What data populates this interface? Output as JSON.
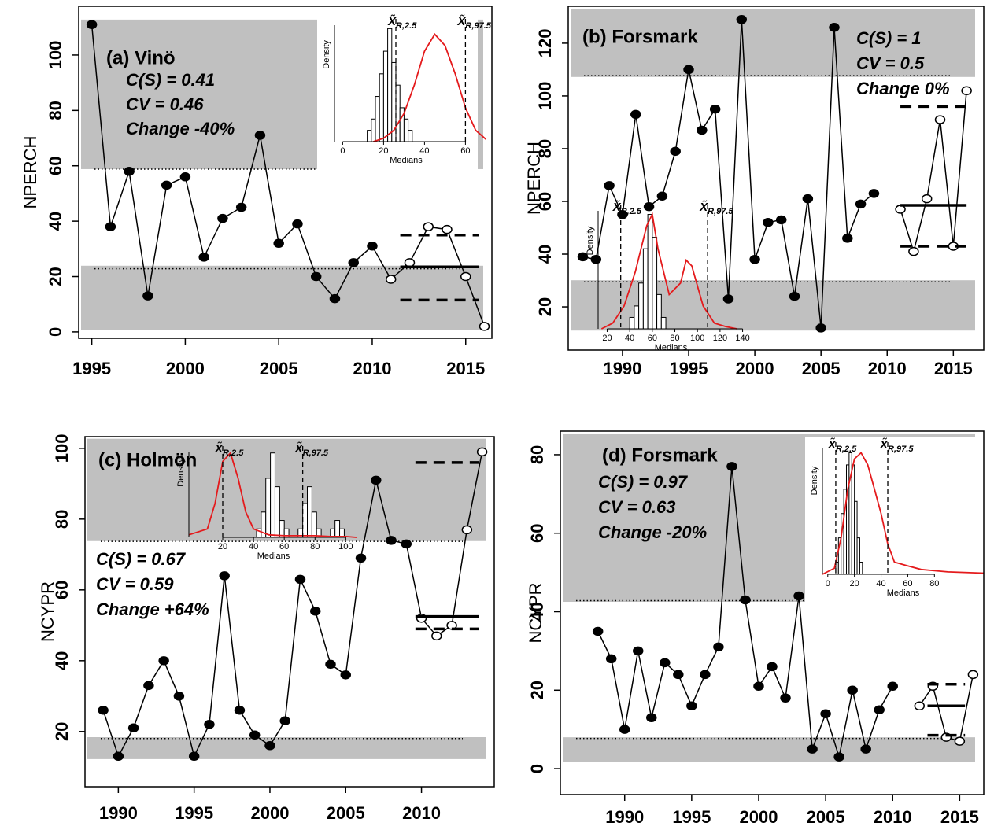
{
  "chart_data": [
    {
      "type": "line",
      "panel_label": "(a) Vinö",
      "stats": [
        "C(S) = 0.41",
        "CV = 0.46",
        "Change -40%"
      ],
      "ylabel": "NPERCH",
      "x": [
        1995,
        1996,
        1997,
        1998,
        1999,
        2000,
        2001,
        2002,
        2003,
        2004,
        2005,
        2006,
        2007,
        2008,
        2009,
        2010,
        2011,
        2012,
        2013,
        2014,
        2015,
        2016
      ],
      "values": [
        111,
        38,
        58,
        13,
        53,
        56,
        27,
        41,
        45,
        71,
        32,
        39,
        20,
        12,
        25,
        31,
        19,
        25,
        38,
        37,
        20,
        2
      ],
      "marker_open": [
        false,
        false,
        false,
        false,
        false,
        false,
        false,
        false,
        false,
        false,
        false,
        false,
        false,
        false,
        false,
        false,
        true,
        true,
        true,
        true,
        true,
        true
      ],
      "xlim": [
        1994.3,
        2016.4
      ],
      "ylim": [
        -2.3,
        117.6
      ],
      "xticks": [
        1995,
        2000,
        2005,
        2010,
        2015
      ],
      "yticks": [
        0,
        20,
        40,
        60,
        80,
        100
      ],
      "bands": [
        [
          0.6,
          23.9
        ],
        [
          58.8,
          112.8
        ]
      ],
      "band_color": "#c0c0c0",
      "thresholds": [
        22.8,
        58.8
      ],
      "ref_xlim": [
        2011.5,
        2015.7
      ],
      "ref_lines": [
        {
          "value": 23.5,
          "style": "solid"
        },
        {
          "value": 35,
          "style": "dashed"
        },
        {
          "value": 11.5,
          "style": "dashed"
        }
      ],
      "inset": {
        "background": "#ffffff",
        "xlim": [
          -4,
          66
        ],
        "ylim": [
          0,
          11
        ],
        "xticks": [
          0,
          20,
          40,
          60
        ],
        "xlabel": "Medians",
        "ylabel": "Density",
        "density_color": "#e41a1c",
        "quantiles": [
          {
            "value": 26,
            "symbol": "X̃",
            "subscript": "R,2.5"
          },
          {
            "value": 60,
            "symbol": "X̃",
            "subscript": "R,97.5"
          }
        ],
        "hist": {
          "bins": [
            12,
            14,
            16,
            18,
            20,
            22,
            24,
            26,
            28,
            30,
            32,
            34
          ],
          "counts": [
            1,
            2,
            4,
            6,
            8,
            10,
            7,
            5,
            3,
            2,
            1
          ]
        },
        "density": {
          "x": [
            15,
            20,
            25,
            30,
            35,
            40,
            45,
            50,
            55,
            60,
            65,
            70
          ],
          "y": [
            0,
            0.3,
            1,
            2.5,
            5,
            8,
            9.5,
            8.5,
            6,
            3,
            1,
            0.2
          ]
        }
      }
    },
    {
      "type": "line",
      "panel_label": "(b) Forsmark",
      "stats": [
        "C(S) = 1",
        "CV = 0.5",
        "Change 0%"
      ],
      "ylabel": "NPERCH",
      "x": [
        1987,
        1988,
        1989,
        1990,
        1991,
        1992,
        1993,
        1994,
        1995,
        1996,
        1997,
        1998,
        1999,
        2000,
        2001,
        2002,
        2003,
        2004,
        2005,
        2006,
        2007,
        2008,
        2009,
        2010,
        2011,
        2012,
        2013,
        2014,
        2015,
        2016
      ],
      "values": [
        39,
        38,
        66,
        55,
        93,
        58,
        62,
        79,
        110,
        87,
        95,
        23,
        129,
        38,
        52,
        53,
        24,
        61,
        12,
        126,
        46,
        59,
        63,
        null,
        57,
        41,
        61,
        91,
        43,
        102
      ],
      "marker_open": [
        false,
        false,
        false,
        false,
        false,
        false,
        false,
        false,
        false,
        false,
        false,
        false,
        false,
        false,
        false,
        false,
        false,
        false,
        false,
        false,
        false,
        false,
        false,
        false,
        true,
        true,
        true,
        true,
        true,
        true
      ],
      "xlim": [
        1985.9,
        2017.3
      ],
      "ylim": [
        3.6,
        134
      ],
      "xticks": [
        1990,
        1995,
        2000,
        2005,
        2010,
        2015
      ],
      "yticks": [
        20,
        40,
        60,
        80,
        100,
        120
      ],
      "bands": [
        [
          11,
          30.1
        ],
        [
          107.2,
          132.8
        ]
      ],
      "band_color": "#c0c0c0",
      "thresholds": [
        29.5,
        107.7
      ],
      "ref_xlim": [
        2011,
        2016
      ],
      "ref_lines": [
        {
          "value": 58.5,
          "style": "solid"
        },
        {
          "value": 96,
          "style": "dashed"
        },
        {
          "value": 43,
          "style": "dashed"
        }
      ],
      "inset": {
        "xlim": [
          12,
          141
        ],
        "ylim": [
          0,
          11
        ],
        "xticks": [
          20,
          40,
          60,
          80,
          100,
          120,
          140
        ],
        "xlabel": "Medians",
        "ylabel": "Density",
        "density_color": "#e41a1c",
        "quantiles": [
          {
            "value": 32,
            "symbol": "X̃",
            "subscript": "R,2.5"
          },
          {
            "value": 109,
            "symbol": "X̃",
            "subscript": "R,97.5"
          }
        ],
        "hist": {
          "bins": [
            40,
            44,
            48,
            52,
            56,
            60,
            64,
            68,
            72
          ],
          "counts": [
            1,
            2,
            4,
            7,
            10,
            8,
            3,
            1
          ]
        },
        "density": {
          "x": [
            15,
            25,
            35,
            45,
            55,
            60,
            65,
            75,
            85,
            90,
            95,
            105,
            115,
            125,
            135
          ],
          "y": [
            0,
            0.5,
            2,
            5,
            9,
            10,
            7,
            3,
            4,
            6,
            5.5,
            2,
            0.5,
            0.2,
            0
          ]
        }
      }
    },
    {
      "type": "line",
      "panel_label": "(c) Holmön",
      "stats": [
        "C(S) = 0.67",
        "CV = 0.59",
        "Change +64%"
      ],
      "ylabel": "NCYPR",
      "x": [
        1989,
        1990,
        1991,
        1992,
        1993,
        1994,
        1995,
        1996,
        1997,
        1998,
        1999,
        2000,
        2001,
        2002,
        2003,
        2004,
        2005,
        2006,
        2007,
        2008,
        2009,
        2010,
        2011,
        2012,
        2013,
        2014
      ],
      "values": [
        26,
        13,
        21,
        33,
        40,
        30,
        13,
        22,
        64,
        26,
        19,
        16,
        23,
        63,
        54,
        39,
        36,
        69,
        91,
        74,
        73,
        52,
        47,
        50,
        77,
        99
      ],
      "marker_open": [
        false,
        false,
        false,
        false,
        false,
        false,
        false,
        false,
        false,
        false,
        false,
        false,
        false,
        false,
        false,
        false,
        false,
        false,
        false,
        false,
        false,
        true,
        true,
        true,
        true,
        true
      ],
      "xlim": [
        1987.8,
        2014.8
      ],
      "ylim": [
        4.4,
        103.3
      ],
      "xticks": [
        1990,
        1995,
        2000,
        2005,
        2010
      ],
      "yticks": [
        20,
        40,
        60,
        80,
        100
      ],
      "bands": [
        [
          12.2,
          18.4
        ],
        [
          73.8,
          102.7
        ]
      ],
      "band_color": "#c0c0c0",
      "thresholds": [
        18,
        73.7
      ],
      "ref_xlim": [
        2009.6,
        2013.8
      ],
      "ref_lines": [
        {
          "value": 52.5,
          "style": "solid"
        },
        {
          "value": 96,
          "style": "dashed"
        },
        {
          "value": 49,
          "style": "dashed"
        }
      ],
      "inset": {
        "xlim": [
          -2,
          108
        ],
        "ylim": [
          0,
          11
        ],
        "xticks": [
          20,
          40,
          60,
          80,
          100
        ],
        "xlabel": "Medians",
        "ylabel": "Density",
        "density_color": "#e41a1c",
        "quantiles": [
          {
            "value": 20,
            "symbol": "X̃",
            "subscript": "R,2.5"
          },
          {
            "value": 72,
            "symbol": "X̃",
            "subscript": "R,97.5"
          }
        ],
        "hist": {
          "bins": [
            42,
            45,
            48,
            51,
            54,
            57,
            60,
            63,
            66,
            69,
            72,
            75,
            78,
            81,
            84,
            87,
            90,
            93,
            96,
            99
          ],
          "counts": [
            1,
            3,
            7,
            10,
            6,
            2,
            1,
            0,
            0,
            1,
            4,
            6,
            3,
            1,
            0,
            0,
            1,
            2,
            1
          ]
        },
        "density": {
          "x": [
            -2,
            10,
            15,
            20,
            25,
            30,
            35,
            40,
            50,
            60,
            70,
            80,
            90,
            100,
            107
          ],
          "y": [
            0.3,
            1,
            4,
            9,
            10,
            7,
            3,
            1,
            0.3,
            0.2,
            0.2,
            0.2,
            0.1,
            0.1,
            0
          ]
        }
      }
    },
    {
      "type": "line",
      "panel_label": "(d) Forsmark",
      "stats": [
        "C(S) = 0.97",
        "CV = 0.63",
        "Change -20%"
      ],
      "ylabel": "NCYPR",
      "x": [
        1988,
        1989,
        1990,
        1991,
        1992,
        1993,
        1994,
        1995,
        1996,
        1997,
        1998,
        1999,
        2000,
        2001,
        2002,
        2003,
        2004,
        2005,
        2006,
        2007,
        2008,
        2009,
        2010,
        2011,
        2012,
        2013,
        2014,
        2015,
        2016
      ],
      "values": [
        35,
        28,
        10,
        30,
        13,
        27,
        24,
        16,
        24,
        31,
        77,
        43,
        21,
        26,
        18,
        44,
        5,
        14,
        3,
        20,
        5,
        15,
        21,
        null,
        16,
        21,
        8,
        7,
        24
      ],
      "marker_open": [
        false,
        false,
        false,
        false,
        false,
        false,
        false,
        false,
        false,
        false,
        false,
        false,
        false,
        false,
        false,
        false,
        false,
        false,
        false,
        false,
        false,
        false,
        false,
        false,
        true,
        true,
        true,
        true,
        true
      ],
      "xlim": [
        1985.2,
        2016.8
      ],
      "ylim": [
        -6.6,
        86
      ],
      "xticks": [
        1990,
        1995,
        2000,
        2005,
        2010,
        2015
      ],
      "yticks": [
        0,
        20,
        40,
        60,
        80
      ],
      "bands": [
        [
          1.8,
          8
        ],
        [
          42.5,
          85.2
        ]
      ],
      "band_color": "#c0c0c0",
      "thresholds": [
        7.7,
        42.8
      ],
      "ref_xlim": [
        2012.6,
        2015.4
      ],
      "ref_lines": [
        {
          "value": 16,
          "style": "solid"
        },
        {
          "value": 21.5,
          "style": "dashed"
        },
        {
          "value": 8.5,
          "style": "dashed"
        }
      ],
      "inset": {
        "background": "#ffffff",
        "xlim": [
          -4,
          117
        ],
        "ylim": [
          0,
          11
        ],
        "xticks": [
          0,
          20,
          40,
          60,
          80
        ],
        "xlabel": "Medians",
        "ylabel": "Density",
        "density_color": "#e41a1c",
        "quantiles": [
          {
            "value": 6,
            "symbol": "X̃",
            "subscript": "R,2.5"
          },
          {
            "value": 45,
            "symbol": "X̃",
            "subscript": "R,97.5"
          }
        ],
        "hist": {
          "bins": [
            6,
            8,
            10,
            12,
            14,
            16,
            18,
            20,
            22,
            24,
            26
          ],
          "counts": [
            1,
            3,
            5,
            7,
            9,
            10,
            9,
            6,
            3,
            1
          ]
        },
        "density": {
          "x": [
            -4,
            5,
            10,
            15,
            20,
            25,
            30,
            35,
            40,
            45,
            50,
            60,
            70,
            80,
            90,
            117
          ],
          "y": [
            0,
            0.5,
            3,
            7,
            9.5,
            10,
            9,
            7,
            5,
            2.5,
            1,
            0.7,
            0.4,
            0.3,
            0.2,
            0.1
          ]
        }
      }
    }
  ]
}
